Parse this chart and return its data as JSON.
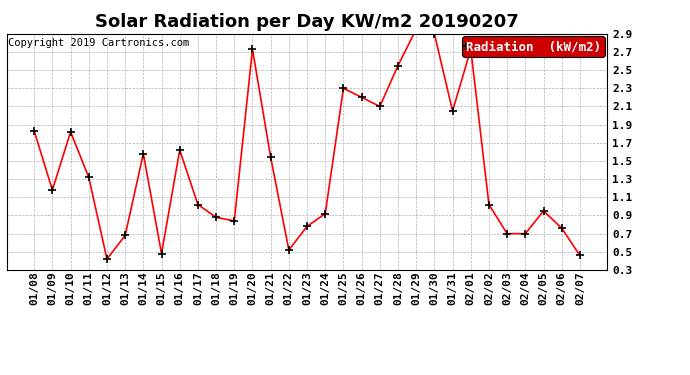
{
  "title": "Solar Radiation per Day KW/m2 20190207",
  "copyright": "Copyright 2019 Cartronics.com",
  "legend_label": "Radiation  (kW/m2)",
  "dates": [
    "01/08",
    "01/09",
    "01/10",
    "01/11",
    "01/12",
    "01/13",
    "01/14",
    "01/15",
    "01/16",
    "01/17",
    "01/18",
    "01/19",
    "01/20",
    "01/21",
    "01/22",
    "01/23",
    "01/24",
    "01/25",
    "01/26",
    "01/27",
    "01/28",
    "01/29",
    "01/30",
    "01/31",
    "02/01",
    "02/02",
    "02/03",
    "02/04",
    "02/05",
    "02/06",
    "02/07"
  ],
  "values": [
    1.83,
    1.18,
    1.82,
    1.32,
    0.42,
    0.68,
    1.58,
    0.48,
    1.62,
    1.02,
    0.88,
    0.84,
    2.73,
    1.54,
    0.52,
    0.78,
    0.92,
    2.3,
    2.2,
    2.1,
    2.55,
    2.95,
    2.9,
    2.05,
    2.73,
    1.02,
    0.7,
    0.7,
    0.95,
    0.76,
    0.46
  ],
  "line_color": "red",
  "marker": "+",
  "marker_color": "black",
  "bg_color": "#ffffff",
  "plot_bg_color": "#ffffff",
  "grid_color": "#aaaaaa",
  "ylim_min": 0.3,
  "ylim_max": 2.9,
  "yticks": [
    0.3,
    0.5,
    0.7,
    0.9,
    1.1,
    1.3,
    1.5,
    1.7,
    1.9,
    2.1,
    2.3,
    2.5,
    2.7,
    2.9
  ],
  "title_fontsize": 13,
  "tick_fontsize": 8,
  "legend_fontsize": 9,
  "legend_bg": "#cc0000",
  "legend_text_color": "#ffffff",
  "copyright_fontsize": 7.5
}
